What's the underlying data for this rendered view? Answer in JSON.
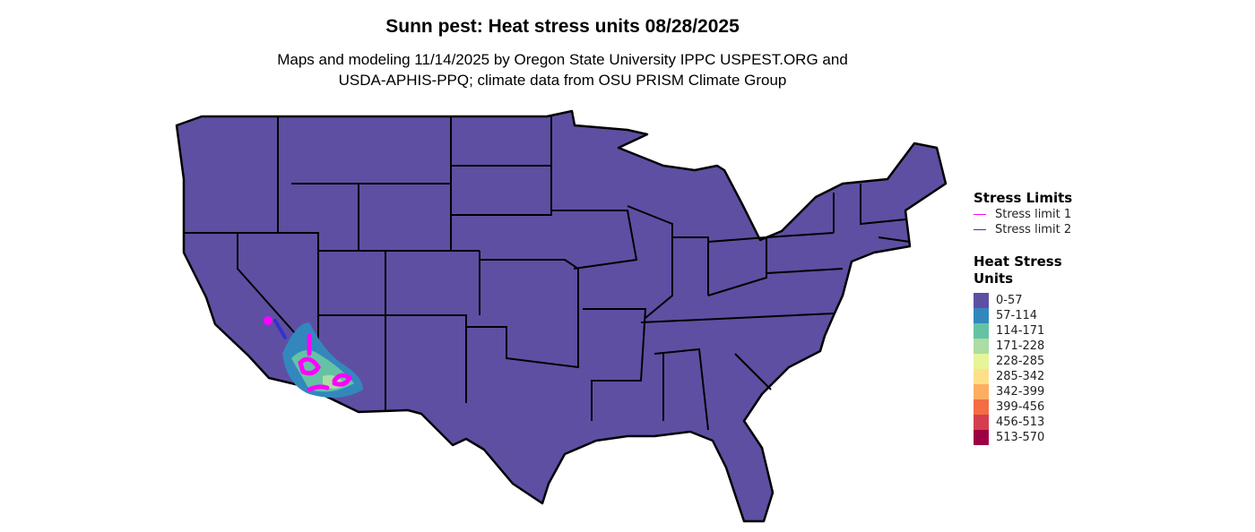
{
  "title": "Sunn pest: Heat stress units 08/28/2025",
  "subtitle_line1": "Maps and modeling 11/14/2025 by Oregon State University IPPC USPEST.ORG and",
  "subtitle_line2": "USDA-APHIS-PPQ; climate data from OSU PRISM Climate Group",
  "map": {
    "region": "Contiguous United States",
    "base_color": "#5E4FA2",
    "border_color": "#000000"
  },
  "legend_limits": {
    "title": "Stress Limits",
    "items": [
      {
        "label": "Stress limit 1",
        "color": "#FF00FF"
      },
      {
        "label": "Stress limit 2",
        "color": "#3333CC"
      }
    ]
  },
  "legend_units": {
    "title_line1": "Heat Stress",
    "title_line2": "Units",
    "items": [
      {
        "label": "0-57",
        "color": "#5E4FA2"
      },
      {
        "label": "57-114",
        "color": "#3288BD"
      },
      {
        "label": "114-171",
        "color": "#66C2A5"
      },
      {
        "label": "171-228",
        "color": "#ABDDA4"
      },
      {
        "label": "228-285",
        "color": "#E6F598"
      },
      {
        "label": "285-342",
        "color": "#FEE08B"
      },
      {
        "label": "342-399",
        "color": "#FDAE61"
      },
      {
        "label": "399-456",
        "color": "#F46D43"
      },
      {
        "label": "456-513",
        "color": "#D53E4F"
      },
      {
        "label": "513-570",
        "color": "#9E0142"
      }
    ]
  }
}
